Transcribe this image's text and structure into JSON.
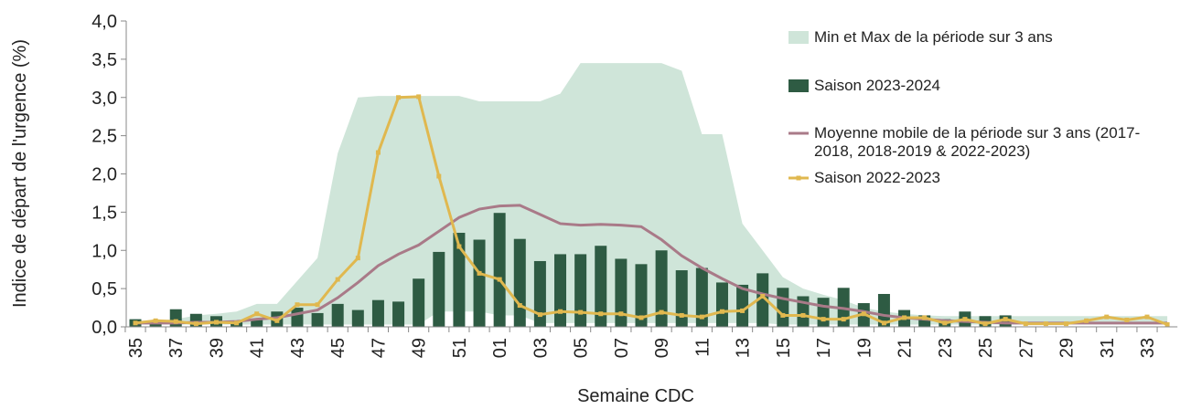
{
  "chart_data": {
    "type": "combo",
    "y_label": "Indice de départ de l'urgence (%)",
    "x_label": "Semaine CDC",
    "categories": [
      "35",
      null,
      "37",
      null,
      "39",
      null,
      "41",
      null,
      "43",
      null,
      "45",
      null,
      "47",
      null,
      "49",
      null,
      "51",
      null,
      "01",
      null,
      "03",
      null,
      "05",
      null,
      "07",
      null,
      "09",
      null,
      "11",
      null,
      "13",
      null,
      "15",
      null,
      "17",
      null,
      "19",
      null,
      "21",
      null,
      "23",
      null,
      "25",
      null,
      "27",
      null,
      "29",
      null,
      "31",
      null,
      "33",
      null
    ],
    "ylim": [
      0,
      4
    ],
    "yticks": [
      {
        "value": 0,
        "label": "0,0"
      },
      {
        "value": 0.5,
        "label": "0,5"
      },
      {
        "value": 1,
        "label": "1,0"
      },
      {
        "value": 1.5,
        "label": "1,5"
      },
      {
        "value": 2,
        "label": "2,0"
      },
      {
        "value": 2.5,
        "label": "2,5"
      },
      {
        "value": 3,
        "label": "3,0"
      },
      {
        "value": 3.5,
        "label": "3,5"
      },
      {
        "value": 4,
        "label": "4,0"
      }
    ],
    "series": [
      {
        "name": "Min et Max de la période sur 3 ans",
        "type": "range",
        "color": "#cfe5d9",
        "max": [
          0.08,
          0.08,
          0.1,
          0.15,
          0.17,
          0.2,
          0.3,
          0.3,
          0.6,
          0.9,
          2.27,
          3.0,
          3.02,
          3.02,
          3.02,
          3.02,
          3.02,
          2.95,
          2.95,
          2.95,
          2.95,
          3.05,
          3.45,
          3.45,
          3.45,
          3.45,
          3.45,
          3.35,
          2.52,
          2.52,
          1.35,
          1.0,
          0.65,
          0.5,
          0.42,
          0.35,
          0.25,
          0.2,
          0.17,
          0.15,
          0.14,
          0.14,
          0.14,
          0.14,
          0.14,
          0.14,
          0.14,
          0.14,
          0.14,
          0.14,
          0.14,
          0.14
        ],
        "min": [
          0.03,
          0.03,
          0.03,
          0.03,
          0.03,
          0.03,
          0.03,
          0.03,
          0.03,
          0.03,
          0.03,
          0.03,
          0.03,
          0.03,
          0.03,
          0.2,
          0.2,
          0.2,
          0.15,
          0.15,
          0.05,
          0.05,
          0.05,
          0.05,
          0.05,
          0.05,
          0.05,
          0.05,
          0.05,
          0.05,
          0.05,
          0.05,
          0.03,
          0.03,
          0.03,
          0.03,
          0.03,
          0.03,
          0.03,
          0.03,
          0.03,
          0.03,
          0.03,
          0.03,
          0.03,
          0.03,
          0.03,
          0.03,
          0.03,
          0.03,
          0.03,
          0.03
        ]
      },
      {
        "name": "Saison 2023-2024",
        "type": "bar",
        "color": "#2e5b43",
        "values": [
          0.1,
          0.07,
          0.23,
          0.17,
          0.14,
          0.08,
          0.1,
          0.2,
          0.25,
          0.18,
          0.3,
          0.22,
          0.35,
          0.33,
          0.63,
          0.98,
          1.23,
          1.14,
          1.49,
          1.15,
          0.86,
          0.95,
          0.95,
          1.06,
          0.89,
          0.82,
          1.0,
          0.74,
          0.77,
          0.58,
          0.55,
          0.7,
          0.51,
          0.4,
          0.38,
          0.51,
          0.31,
          0.43,
          0.22,
          0.15,
          0.1,
          0.2,
          0.14,
          0.15,
          null,
          null,
          null,
          null,
          null,
          null,
          null,
          null
        ]
      },
      {
        "name": "Moyenne mobile de la période sur 3 ans (2017-2018, 2018-2019 & 2022-2023)",
        "type": "line",
        "color": "#a97a88",
        "values": [
          0.05,
          0.05,
          0.05,
          0.06,
          0.06,
          0.07,
          0.1,
          0.12,
          0.17,
          0.22,
          0.38,
          0.58,
          0.8,
          0.95,
          1.07,
          1.25,
          1.43,
          1.54,
          1.58,
          1.59,
          1.47,
          1.35,
          1.33,
          1.34,
          1.33,
          1.31,
          1.14,
          0.93,
          0.77,
          0.63,
          0.5,
          0.43,
          0.37,
          0.32,
          0.27,
          0.24,
          0.2,
          0.15,
          0.12,
          0.1,
          0.08,
          0.07,
          0.06,
          0.05,
          0.05,
          0.05,
          0.05,
          0.05,
          0.05,
          0.05,
          0.05,
          0.05
        ]
      },
      {
        "name": "Saison 2022-2023",
        "type": "line",
        "markers": true,
        "color": "#e0b84f",
        "values": [
          0.05,
          0.08,
          0.07,
          0.04,
          0.06,
          0.05,
          0.17,
          0.08,
          0.29,
          0.29,
          0.62,
          0.9,
          2.28,
          3.0,
          3.01,
          1.97,
          1.05,
          0.7,
          0.62,
          0.28,
          0.16,
          0.2,
          0.19,
          0.17,
          0.17,
          0.12,
          0.19,
          0.15,
          0.13,
          0.2,
          0.21,
          0.4,
          0.15,
          0.15,
          0.1,
          0.1,
          0.17,
          0.05,
          0.12,
          0.12,
          0.05,
          0.1,
          0.04,
          0.1,
          0.04,
          0.04,
          0.04,
          0.08,
          0.13,
          0.09,
          0.13,
          0.03
        ]
      }
    ]
  }
}
